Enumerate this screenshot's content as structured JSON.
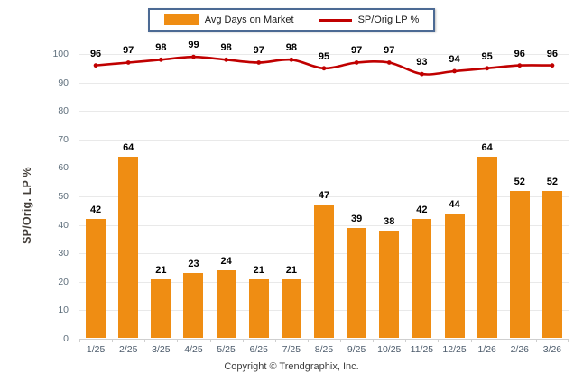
{
  "legend": {
    "items": [
      {
        "label": "Avg Days on Market",
        "swatch": "bar"
      },
      {
        "label": "SP/Orig LP %",
        "swatch": "line"
      }
    ]
  },
  "chart_data": {
    "type": "bar",
    "categories": [
      "1/25",
      "2/25",
      "3/25",
      "4/25",
      "5/25",
      "6/25",
      "7/25",
      "8/25",
      "9/25",
      "10/25",
      "11/25",
      "12/25",
      "1/26",
      "2/26",
      "3/26"
    ],
    "series": [
      {
        "name": "Avg Days on Market",
        "type": "bar",
        "color": "#EF8D13",
        "values": [
          42,
          64,
          21,
          23,
          24,
          21,
          21,
          47,
          39,
          38,
          42,
          44,
          64,
          52,
          52
        ]
      },
      {
        "name": "SP/Orig LP %",
        "type": "line",
        "color": "#C00000",
        "values": [
          96,
          97,
          98,
          99,
          98,
          97,
          98,
          95,
          97,
          97,
          93,
          94,
          95,
          96,
          96
        ]
      }
    ],
    "title": "",
    "xlabel": "",
    "ylabel": "SP/Orig. LP %",
    "ylim": [
      0,
      100
    ],
    "y_ticks": [
      0,
      10,
      20,
      30,
      40,
      50,
      60,
      70,
      80,
      90,
      100
    ],
    "grid": "horizontal",
    "legend_position": "top-center"
  },
  "footer": {
    "copyright": "Copyright © Trendgraphix, Inc."
  },
  "colors": {
    "bar": "#EF8D13",
    "line": "#C00000",
    "grid": "#E9E9E9",
    "axis_line": "#CFCFCF",
    "y_tick_text": "#5F6F7C",
    "x_label_text": "#4C5B6B",
    "y_title_text": "#443F3A",
    "value_label_text": "#000000",
    "legend_border": "#4C6A94",
    "footer_text": "#3C3C3C"
  }
}
